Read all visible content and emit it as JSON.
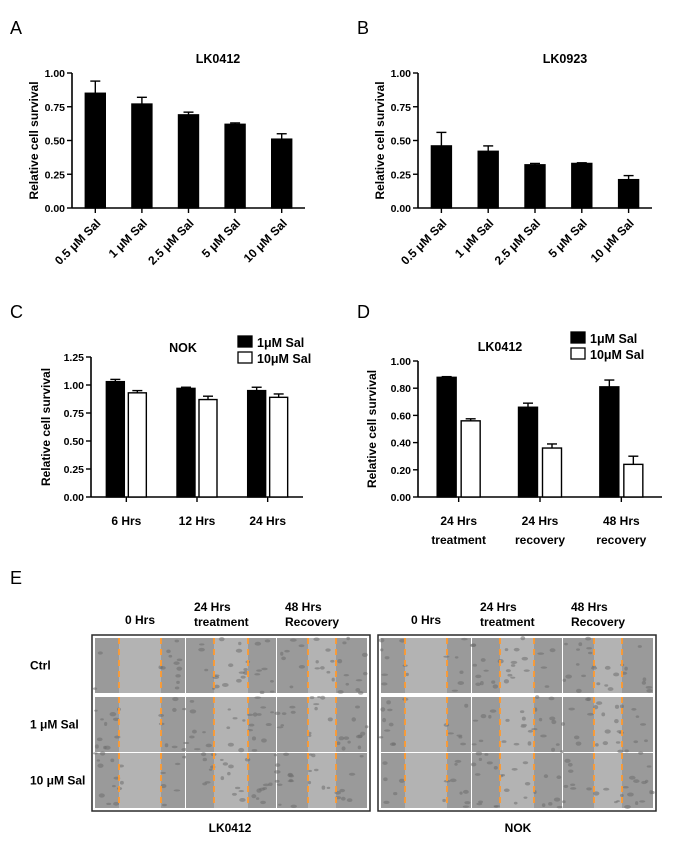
{
  "panels": {
    "A": "A",
    "B": "B",
    "C": "C",
    "D": "D",
    "E": "E"
  },
  "chart_data": [
    {
      "id": "A",
      "type": "bar",
      "title": "LK0412",
      "ylabel": "Relative cell survival",
      "ylim": [
        0,
        1
      ],
      "yticks": [
        "0.00",
        "0.25",
        "0.50",
        "0.75",
        "1.00"
      ],
      "categories": [
        "0.5 μM Sal",
        "1 μM Sal",
        "2.5 μM Sal",
        "5 μM Sal",
        "10 μM Sal"
      ],
      "series": [
        {
          "values": [
            0.85,
            0.77,
            0.69,
            0.62,
            0.51
          ],
          "errors": [
            0.09,
            0.05,
            0.02,
            0.01,
            0.04
          ],
          "fill": "#000000"
        }
      ]
    },
    {
      "id": "B",
      "type": "bar",
      "title": "LK0923",
      "ylabel": "Relative cell survival",
      "ylim": [
        0,
        1
      ],
      "yticks": [
        "0.00",
        "0.25",
        "0.50",
        "0.75",
        "1.00"
      ],
      "categories": [
        "0.5 μM Sal",
        "1 μM Sal",
        "2.5 μM Sal",
        "5 μM Sal",
        "10 μM Sal"
      ],
      "series": [
        {
          "values": [
            0.46,
            0.42,
            0.32,
            0.33,
            0.21
          ],
          "errors": [
            0.1,
            0.04,
            0.01,
            0.005,
            0.03
          ],
          "fill": "#000000"
        }
      ]
    },
    {
      "id": "C",
      "type": "bar",
      "title": "NOK",
      "ylabel": "Relative cell survival",
      "ylim": [
        0,
        1.25
      ],
      "yticks": [
        "0.00",
        "0.25",
        "0.50",
        "0.75",
        "1.00",
        "1.25"
      ],
      "categories": [
        "6 Hrs",
        "12 Hrs",
        "24 Hrs"
      ],
      "legend_position": "top-right",
      "series": [
        {
          "name": "1μM Sal",
          "values": [
            1.03,
            0.97,
            0.95
          ],
          "errors": [
            0.02,
            0.01,
            0.03
          ],
          "fill": "#000000"
        },
        {
          "name": "10μM Sal",
          "values": [
            0.93,
            0.87,
            0.89
          ],
          "errors": [
            0.02,
            0.03,
            0.03
          ],
          "fill": "#ffffff"
        }
      ]
    },
    {
      "id": "D",
      "type": "bar",
      "title": "LK0412",
      "ylabel": "Relative cell survival",
      "ylim": [
        0,
        1
      ],
      "yticks": [
        "0.00",
        "0.20",
        "0.40",
        "0.60",
        "0.80",
        "1.00"
      ],
      "categories": [
        [
          "24 Hrs",
          "treatment"
        ],
        [
          "24 Hrs",
          "recovery"
        ],
        [
          "48 Hrs",
          "recovery"
        ]
      ],
      "legend_position": "top-right",
      "series": [
        {
          "name": "1μM Sal",
          "values": [
            0.88,
            0.66,
            0.81
          ],
          "errors": [
            0.005,
            0.03,
            0.05
          ],
          "fill": "#000000"
        },
        {
          "name": "10μM Sal",
          "values": [
            0.56,
            0.36,
            0.24
          ],
          "errors": [
            0.015,
            0.03,
            0.06
          ],
          "fill": "#ffffff"
        }
      ]
    }
  ],
  "micrographs": {
    "left": {
      "caption": "LK0412",
      "columns": [
        [
          "0 Hrs"
        ],
        [
          "24 Hrs",
          "treatment"
        ],
        [
          "48 Hrs",
          "Recovery"
        ]
      ]
    },
    "right": {
      "caption": "NOK",
      "columns": [
        [
          "0 Hrs"
        ],
        [
          "24 Hrs",
          "treatment"
        ],
        [
          "48 Hrs",
          "Recovery"
        ]
      ]
    },
    "rows": [
      "Ctrl",
      "1 μM Sal",
      "10 μM Sal"
    ],
    "colors": {
      "frame": "#2a2a2a",
      "tissue": "#9a9a9a",
      "wound": "#b3b3b3",
      "guide": "#ff9a2e"
    }
  }
}
